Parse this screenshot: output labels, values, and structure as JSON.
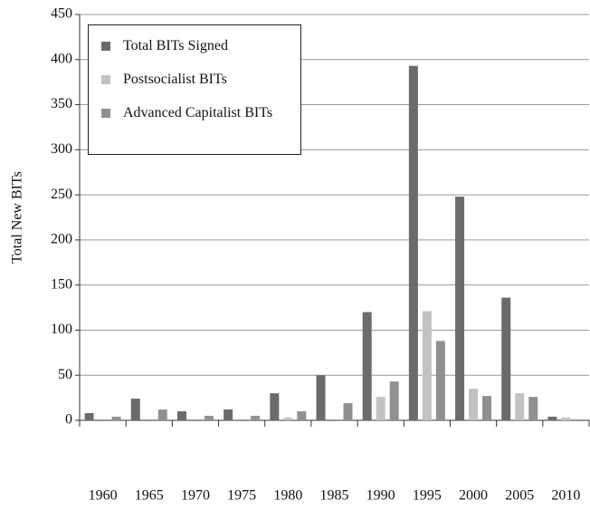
{
  "chart_data": {
    "type": "bar",
    "y_label": "Total New BITs",
    "categories": [
      "1960",
      "1965",
      "1970",
      "1975",
      "1980",
      "1985",
      "1990",
      "1995",
      "2000",
      "2005",
      "2010"
    ],
    "series": [
      {
        "name": "Total BITs Signed",
        "color": "#6b6b6b",
        "values": [
          8,
          24,
          10,
          12,
          30,
          50,
          120,
          393,
          248,
          136,
          4
        ]
      },
      {
        "name": "Postsocialist BITs",
        "color": "#c2c2c2",
        "values": [
          0,
          0,
          0,
          0,
          3,
          0,
          26,
          121,
          35,
          30,
          3
        ]
      },
      {
        "name": "Advanced Capitalist BITs",
        "color": "#909090",
        "values": [
          4,
          12,
          5,
          5,
          10,
          19,
          43,
          88,
          27,
          26,
          0
        ]
      }
    ],
    "ylim": [
      0,
      450
    ],
    "yticks": [
      0,
      50,
      100,
      150,
      200,
      250,
      300,
      350,
      400,
      450
    ],
    "grid": true,
    "legend": "upper left"
  }
}
